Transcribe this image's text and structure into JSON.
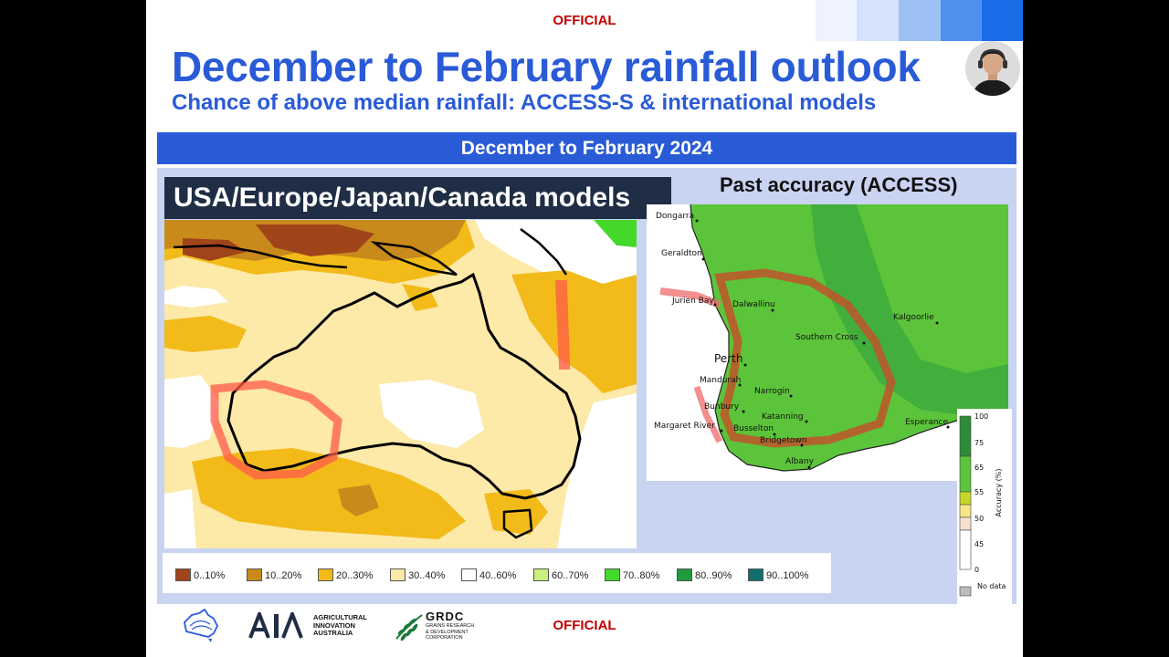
{
  "header": {
    "official_top": "OFFICIAL",
    "title": "December to February rainfall outlook",
    "subtitle": "Chance of above median rainfall: ACCESS-S & international models"
  },
  "banner": {
    "label": "December to February 2024"
  },
  "left_map": {
    "label": "USA/Europe/Japan/Canada models",
    "legend": [
      {
        "label": "0..10%",
        "color": "#a0441a"
      },
      {
        "label": "10..20%",
        "color": "#c98a1c"
      },
      {
        "label": "20..30%",
        "color": "#f2bb1a"
      },
      {
        "label": "30..40%",
        "color": "#fde9a8"
      },
      {
        "label": "40..60%",
        "color": "#ffffff"
      },
      {
        "label": "60..70%",
        "color": "#c9f07a"
      },
      {
        "label": "70..80%",
        "color": "#44d82a"
      },
      {
        "label": "80..90%",
        "color": "#1f9a3c"
      },
      {
        "label": "90..100%",
        "color": "#106e6e"
      }
    ]
  },
  "right_map": {
    "title": "Past accuracy (ACCESS)",
    "places": [
      "Geraldton",
      "Jurien Bay",
      "Dalwallinu",
      "Kalgoorlie",
      "Southern Cross",
      "Perth",
      "Mandurah",
      "Narrogin",
      "Bunbury",
      "Katanning",
      "Margaret River",
      "Busselton",
      "Bridgetown",
      "Esperance",
      "Albany"
    ],
    "partial_place": "Dongarra",
    "legend": {
      "axis_label": "Accuracy (%)",
      "ticks": [
        "100",
        "75",
        "65",
        "55",
        "50",
        "45",
        "0"
      ],
      "no_data": "No data"
    }
  },
  "footer": {
    "official_bottom": "OFFICIAL",
    "aia": {
      "line1": "AGRICULTURAL",
      "line2": "INNOVATION",
      "line3": "AUSTRALIA"
    },
    "grdc": {
      "name": "GRDC",
      "line1": "GRAINS RESEARCH",
      "line2": "& DEVELOPMENT",
      "line3": "CORPORATION"
    }
  }
}
